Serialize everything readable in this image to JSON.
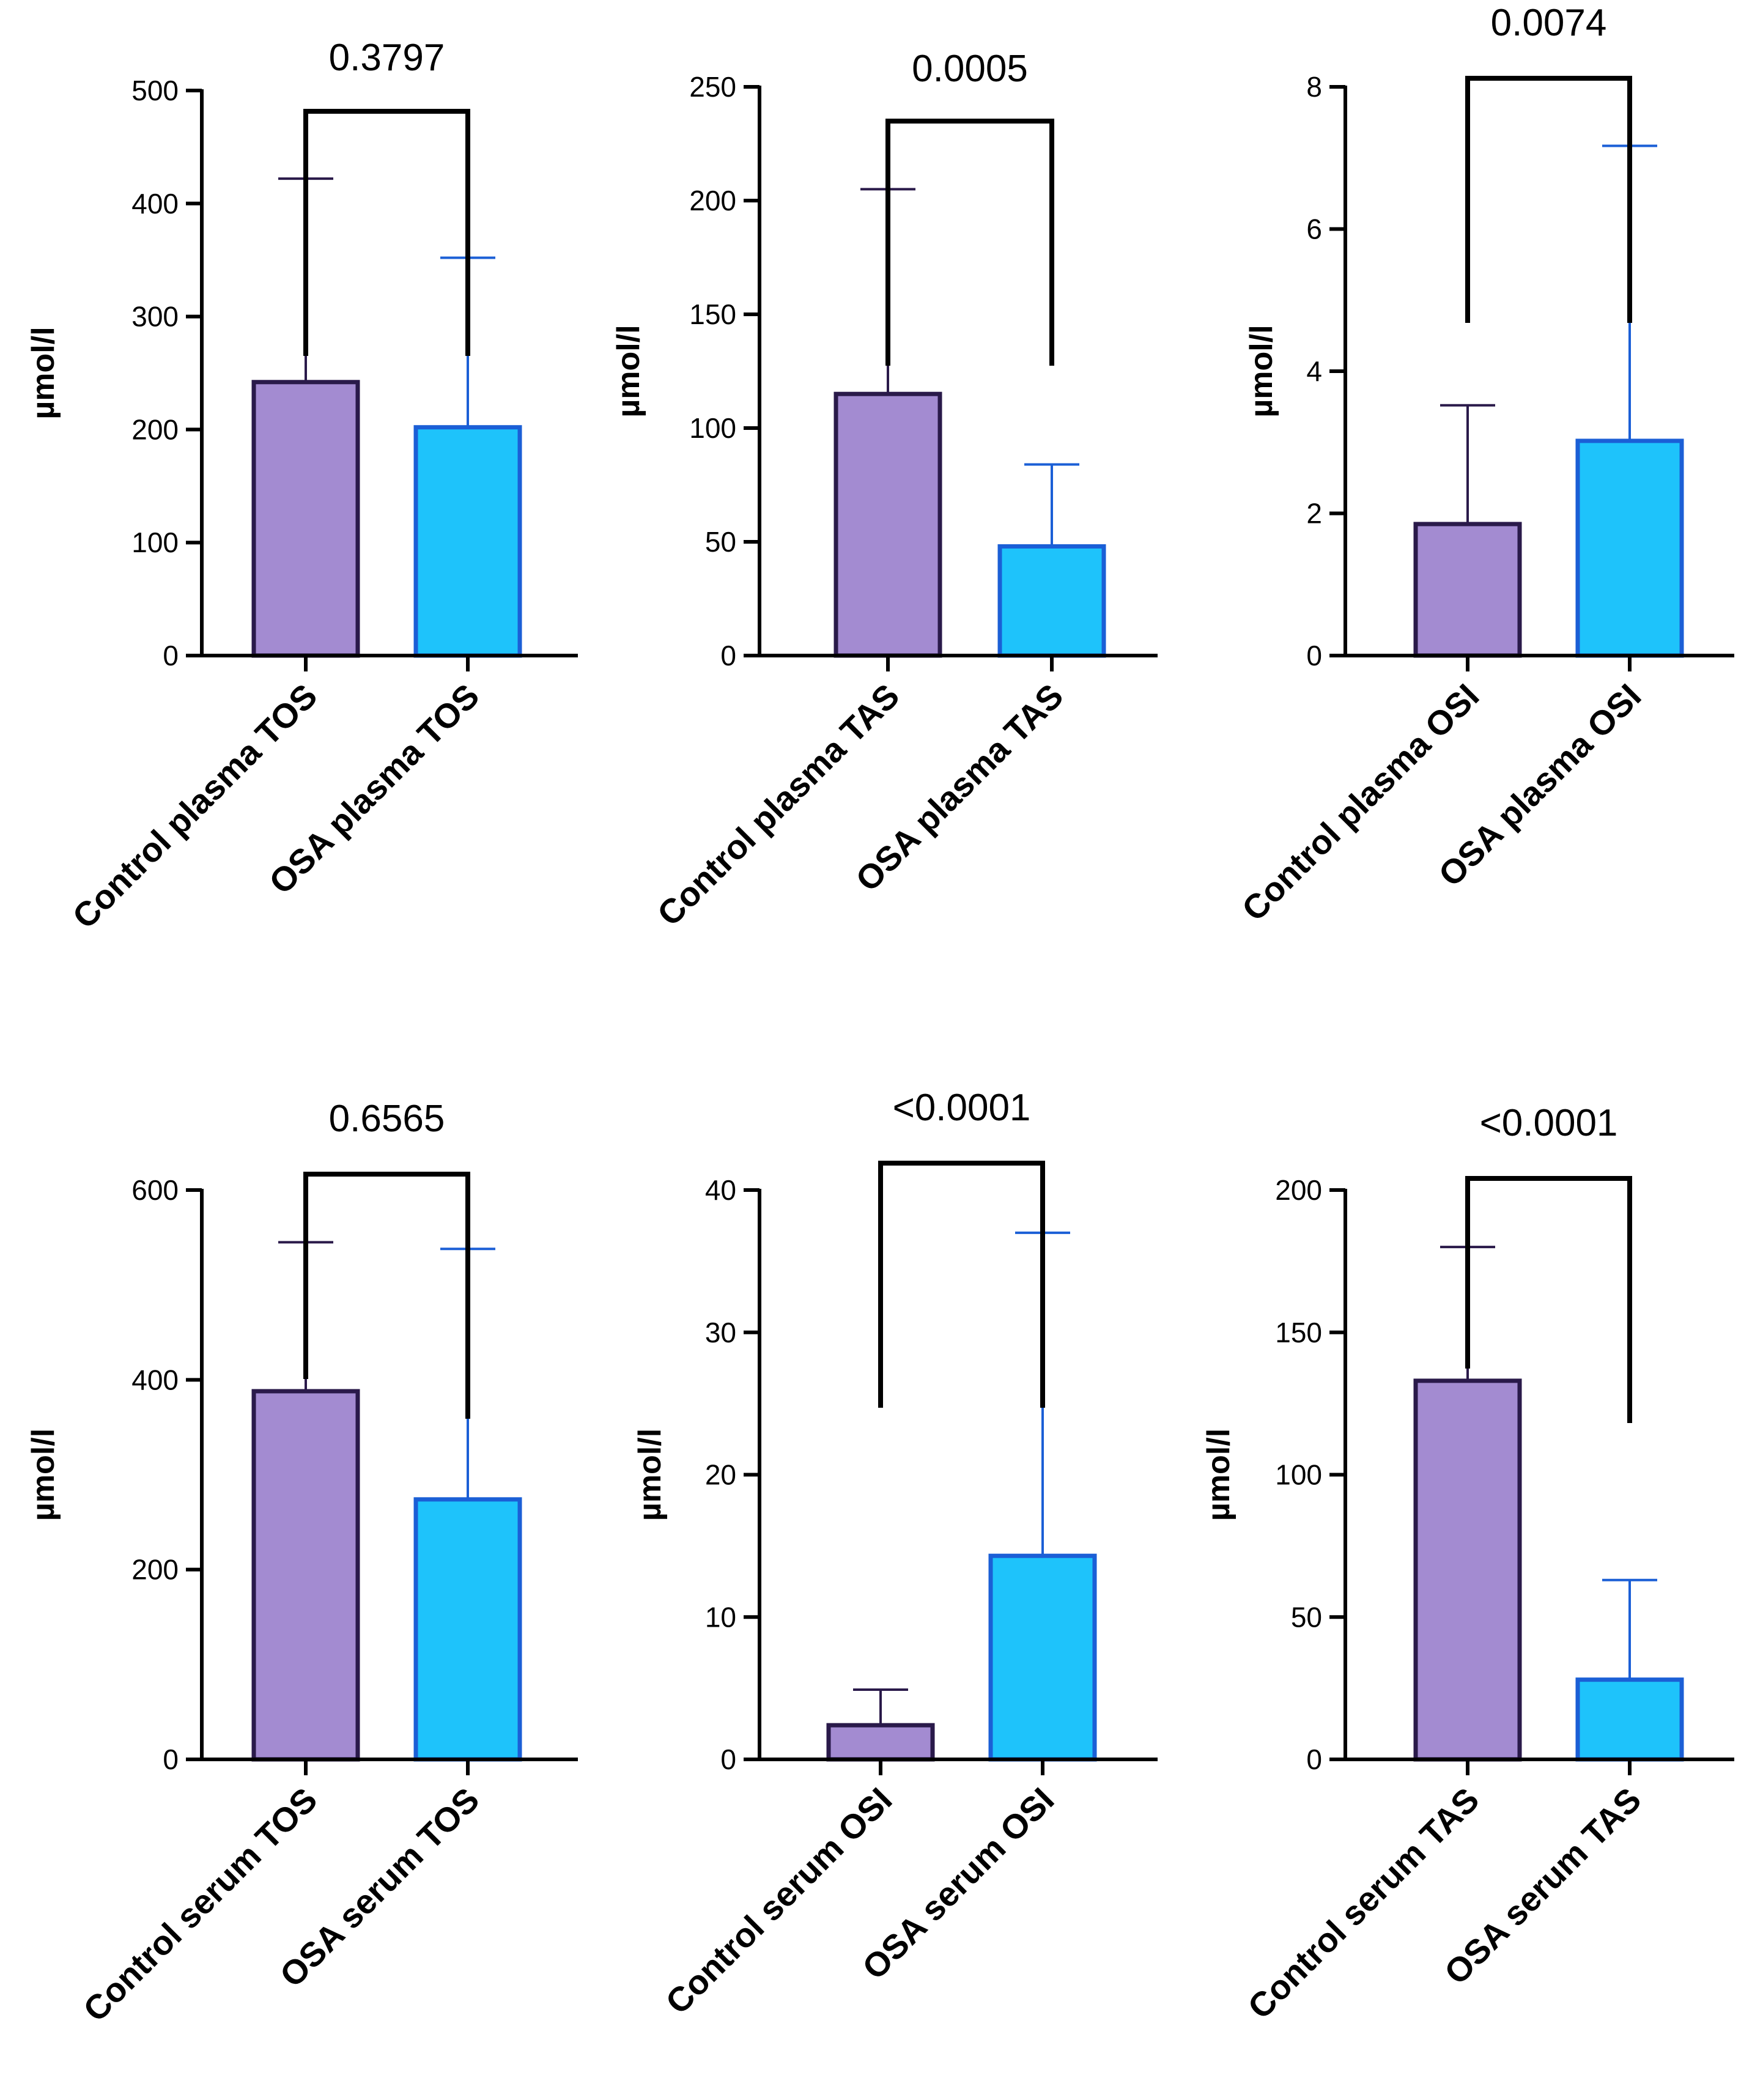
{
  "colors": {
    "control_fill": "#a38bd1",
    "control_edge": "#2a1a4a",
    "osa_fill": "#1ec3fb",
    "osa_edge": "#1b5fd6",
    "axis": "#000000"
  },
  "chart_data": [
    {
      "type": "bar",
      "ylabel": "µmol/l",
      "categories": [
        "Control plasma TOS",
        "OSA plasma TOS"
      ],
      "values": [
        242,
        202
      ],
      "error_upper": [
        422,
        352
      ],
      "ylim": [
        0,
        500
      ],
      "yticks": [
        "0",
        "100",
        "200",
        "300",
        "400",
        "500"
      ],
      "p_value": "0.3797"
    },
    {
      "type": "bar",
      "ylabel": "µmol/l",
      "categories": [
        "Control plasma TAS",
        "OSA plasma TAS"
      ],
      "values": [
        115,
        48
      ],
      "error_upper": [
        205,
        84
      ],
      "ylim": [
        0,
        250
      ],
      "yticks": [
        "0",
        "50",
        "100",
        "150",
        "200",
        "250"
      ],
      "p_value": "0.0005"
    },
    {
      "type": "bar",
      "ylabel": "µmol/l",
      "categories": [
        "Control plasma OSI",
        "OSA plasma OSI"
      ],
      "values": [
        1.85,
        3.02
      ],
      "error_upper": [
        3.52,
        7.17
      ],
      "ylim": [
        0,
        8
      ],
      "yticks": [
        "0",
        "2",
        "4",
        "6",
        "8"
      ],
      "p_value": "0.0074"
    },
    {
      "type": "bar",
      "ylabel": "µmol/l",
      "categories": [
        "Control serum TOS",
        "OSA serum TOS"
      ],
      "values": [
        388,
        274
      ],
      "error_upper": [
        545,
        538
      ],
      "ylim": [
        0,
        600
      ],
      "yticks": [
        "0",
        "200",
        "400",
        "600"
      ],
      "p_value": "0.6565"
    },
    {
      "type": "bar",
      "ylabel": "µmol/l",
      "categories": [
        "Control serum OSI",
        "OSA serum OSI"
      ],
      "values": [
        2.4,
        14.3
      ],
      "error_upper": [
        4.9,
        37.0
      ],
      "ylim": [
        0,
        40
      ],
      "yticks": [
        "0",
        "10",
        "20",
        "30",
        "40"
      ],
      "p_value": "<0.0001"
    },
    {
      "type": "bar",
      "ylabel": "µmol/l",
      "categories": [
        "Control serum TAS",
        "OSA serum TAS"
      ],
      "values": [
        133,
        28
      ],
      "error_upper": [
        180,
        63
      ],
      "ylim": [
        0,
        200
      ],
      "yticks": [
        "0",
        "50",
        "100",
        "150",
        "200"
      ],
      "p_value": "<0.0001"
    }
  ]
}
